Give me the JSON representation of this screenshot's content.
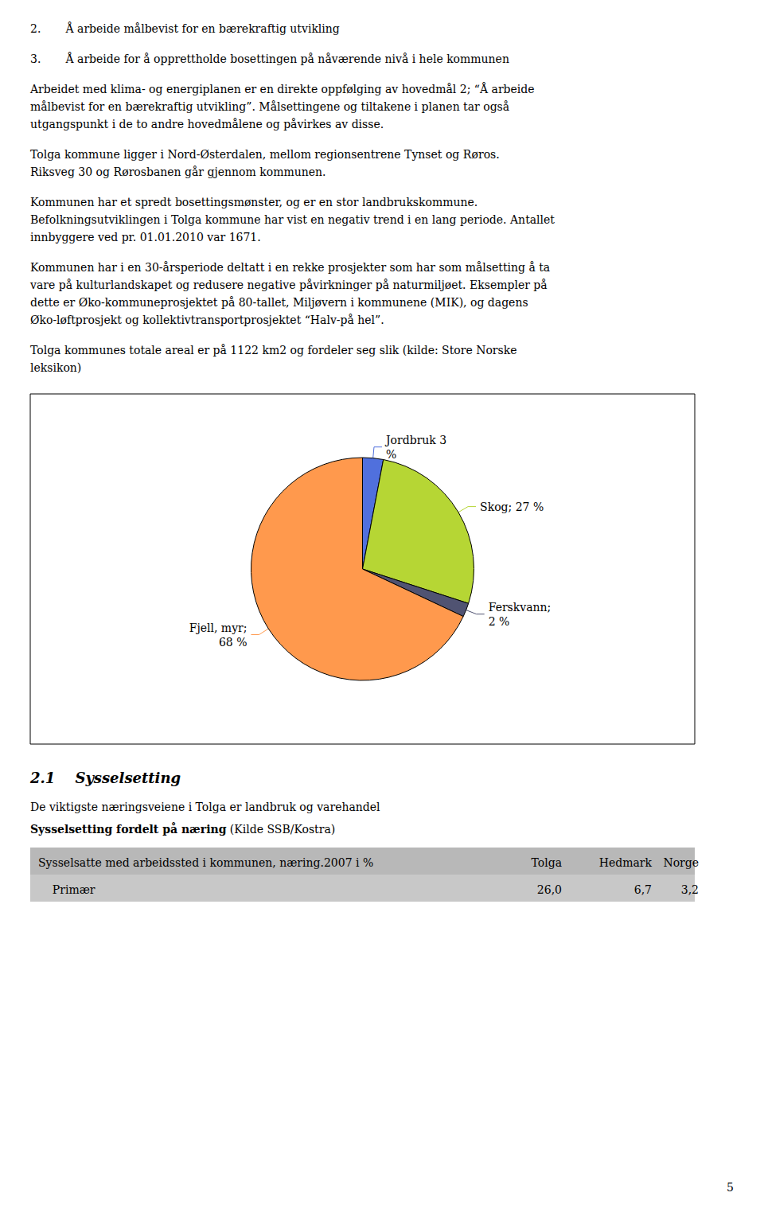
{
  "chart_data": {
    "type": "pie",
    "values": [
      3,
      27,
      2,
      68
    ],
    "value_labels": [
      "Jordbruk 3\n%",
      "Skog; 27 %",
      "Ferskvann;\n2 %",
      "Fjell, myr;\n68 %"
    ],
    "data_labels": true,
    "annotations": [
      "2.       Å arbeide målbevist for en bærekraftig utvikling",
      "3.       Å arbeide for å opprettholde bosettingen på nåværende nivå i hele kommunen",
      "Arbeidet med klima- og energiplanen er en direkte oppfølging av hovedmål 2; “Å arbeide\nmålbevist for en bærekraftig utvikling”. Målsettingene og tiltakene i planen tar også\nutgangspunkt i de to andre hovedmålene og påvirkes av disse.",
      "Tolga kommune ligger i Nord-Østerdalen, mellom regionsentrene Tynset og Røros.\nRiksveg 30 og Rørosbanen går gjennom kommunen.",
      "Kommunen har et spredt bosettingsmønster, og er en stor landbrukskommune.\nBefolkningsutviklingen i Tolga kommune har vist en negativ trend i en lang periode. Antallet\ninnbyggere ved pr. 01.01.2010 var 1671.",
      "Kommunen har i en 30-årsperiode deltatt i en rekke prosjekter som har som målsetting å ta\nvare på kulturlandskapet og redusere negative påvirkninger på naturmiljøet. Eksempler på\ndette er Øko-kommuneprosjektet på 80-tallet, Miljøvern i kommunene (MIK), og dagens\nØko-løftprosjekt og kollektivtransportprosjektet “Halv-på hel”.",
      "Tolga kommunes totale areal er på 1122 km2 og fordeler seg slik (kilde: Store Norske\nleksikon)",
      "2.1    Sysselsetting",
      "De viktigste næringsveiene i Tolga er landbruk og varehandel",
      "Sysselsetting fordelt på næring",
      " (Kilde SSB/Kostra)",
      "Sysselsatte med arbeidssted i kommunen, næring.2007 i %",
      "Tolga",
      "Hedmark",
      "Norge",
      "    Primær",
      "26,0",
      "6,7",
      "3,2",
      "5"
    ]
  }
}
